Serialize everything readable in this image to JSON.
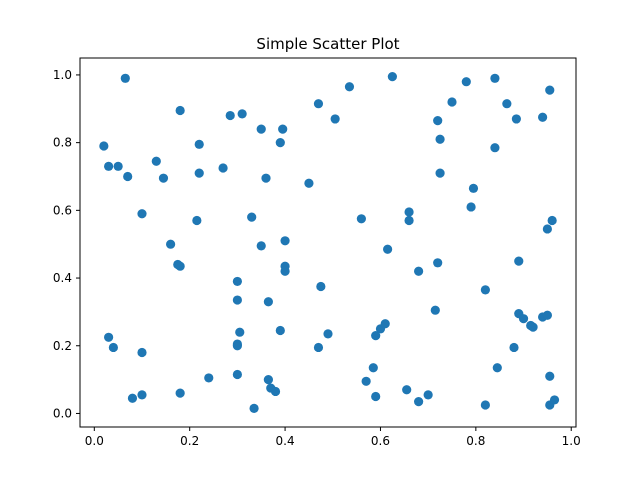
{
  "chart_data": {
    "type": "scatter",
    "title": "Simple Scatter Plot",
    "xlabel": "",
    "ylabel": "",
    "xlim": [
      -0.03,
      1.01
    ],
    "ylim": [
      -0.04,
      1.05
    ],
    "xticks": [
      0.0,
      0.2,
      0.4,
      0.6,
      0.8,
      1.0
    ],
    "xtick_labels": [
      "0.0",
      "0.2",
      "0.4",
      "0.6",
      "0.8",
      "1.0"
    ],
    "yticks": [
      0.0,
      0.2,
      0.4,
      0.6,
      0.8,
      1.0
    ],
    "ytick_labels": [
      "0.0",
      "0.2",
      "0.4",
      "0.6",
      "0.8",
      "1.0"
    ],
    "grid": false,
    "color": "#1f77b4",
    "points": [
      [
        0.02,
        0.79
      ],
      [
        0.03,
        0.73
      ],
      [
        0.05,
        0.73
      ],
      [
        0.07,
        0.7
      ],
      [
        0.065,
        0.99
      ],
      [
        0.1,
        0.59
      ],
      [
        0.13,
        0.745
      ],
      [
        0.145,
        0.695
      ],
      [
        0.16,
        0.5
      ],
      [
        0.175,
        0.44
      ],
      [
        0.18,
        0.435
      ],
      [
        0.18,
        0.895
      ],
      [
        0.215,
        0.57
      ],
      [
        0.22,
        0.795
      ],
      [
        0.22,
        0.71
      ],
      [
        0.27,
        0.725
      ],
      [
        0.285,
        0.88
      ],
      [
        0.31,
        0.885
      ],
      [
        0.33,
        0.58
      ],
      [
        0.35,
        0.84
      ],
      [
        0.35,
        0.495
      ],
      [
        0.36,
        0.695
      ],
      [
        0.39,
        0.8
      ],
      [
        0.395,
        0.84
      ],
      [
        0.4,
        0.51
      ],
      [
        0.4,
        0.435
      ],
      [
        0.4,
        0.42
      ],
      [
        0.45,
        0.68
      ],
      [
        0.47,
        0.915
      ],
      [
        0.505,
        0.87
      ],
      [
        0.535,
        0.965
      ],
      [
        0.56,
        0.575
      ],
      [
        0.615,
        0.485
      ],
      [
        0.625,
        0.995
      ],
      [
        0.66,
        0.595
      ],
      [
        0.66,
        0.57
      ],
      [
        0.68,
        0.42
      ],
      [
        0.72,
        0.445
      ],
      [
        0.72,
        0.865
      ],
      [
        0.725,
        0.81
      ],
      [
        0.725,
        0.71
      ],
      [
        0.75,
        0.92
      ],
      [
        0.78,
        0.98
      ],
      [
        0.79,
        0.61
      ],
      [
        0.795,
        0.665
      ],
      [
        0.84,
        0.99
      ],
      [
        0.84,
        0.785
      ],
      [
        0.865,
        0.915
      ],
      [
        0.885,
        0.87
      ],
      [
        0.94,
        0.875
      ],
      [
        0.955,
        0.955
      ],
      [
        0.96,
        0.57
      ],
      [
        0.95,
        0.545
      ],
      [
        0.89,
        0.45
      ],
      [
        0.82,
        0.365
      ],
      [
        0.03,
        0.225
      ],
      [
        0.04,
        0.195
      ],
      [
        0.1,
        0.18
      ],
      [
        0.08,
        0.045
      ],
      [
        0.1,
        0.055
      ],
      [
        0.18,
        0.06
      ],
      [
        0.24,
        0.105
      ],
      [
        0.3,
        0.39
      ],
      [
        0.3,
        0.335
      ],
      [
        0.305,
        0.24
      ],
      [
        0.3,
        0.2
      ],
      [
        0.3,
        0.205
      ],
      [
        0.3,
        0.115
      ],
      [
        0.335,
        0.015
      ],
      [
        0.365,
        0.33
      ],
      [
        0.39,
        0.245
      ],
      [
        0.365,
        0.1
      ],
      [
        0.37,
        0.075
      ],
      [
        0.38,
        0.065
      ],
      [
        0.47,
        0.195
      ],
      [
        0.475,
        0.375
      ],
      [
        0.49,
        0.235
      ],
      [
        0.57,
        0.095
      ],
      [
        0.585,
        0.135
      ],
      [
        0.59,
        0.05
      ],
      [
        0.59,
        0.23
      ],
      [
        0.6,
        0.25
      ],
      [
        0.61,
        0.265
      ],
      [
        0.655,
        0.07
      ],
      [
        0.68,
        0.035
      ],
      [
        0.7,
        0.055
      ],
      [
        0.715,
        0.305
      ],
      [
        0.82,
        0.025
      ],
      [
        0.845,
        0.135
      ],
      [
        0.88,
        0.195
      ],
      [
        0.89,
        0.295
      ],
      [
        0.9,
        0.28
      ],
      [
        0.915,
        0.26
      ],
      [
        0.92,
        0.255
      ],
      [
        0.94,
        0.285
      ],
      [
        0.95,
        0.29
      ],
      [
        0.955,
        0.11
      ],
      [
        0.955,
        0.025
      ],
      [
        0.965,
        0.04
      ]
    ]
  }
}
